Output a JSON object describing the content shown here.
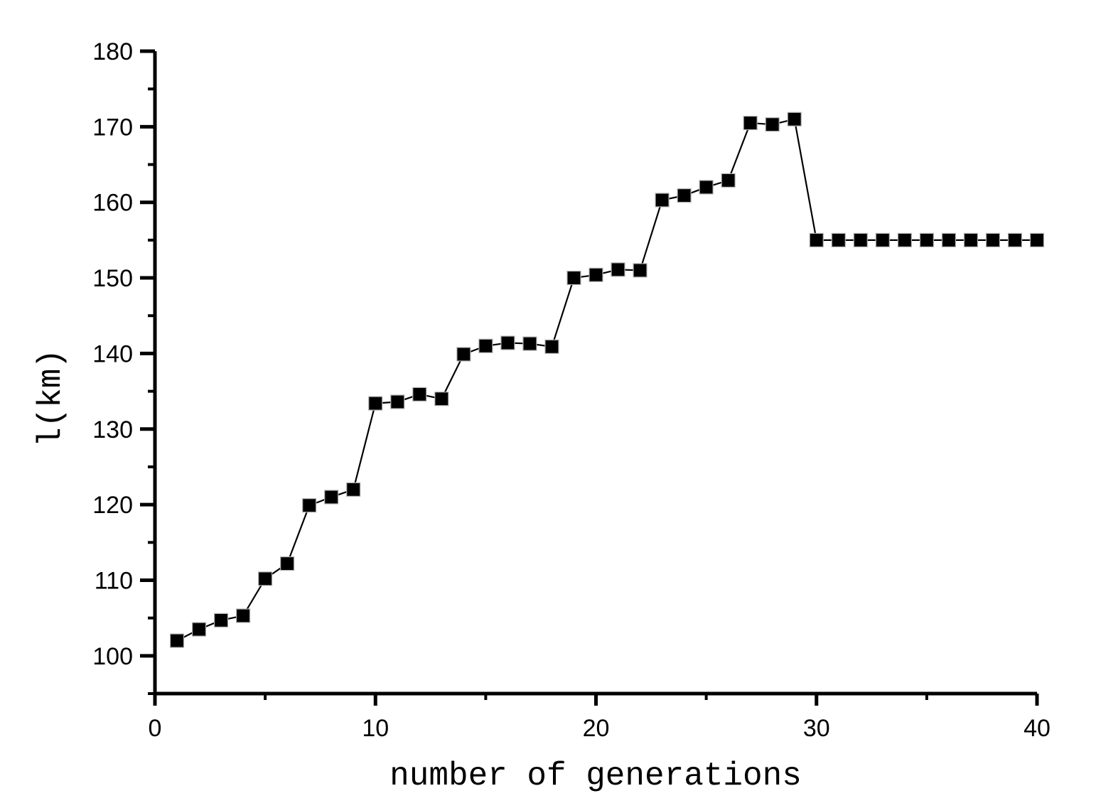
{
  "chart_data": {
    "type": "line",
    "subtype": "scatter-line",
    "marker": "filled-square",
    "title": "",
    "xlabel": "number of generations",
    "ylabel": "l(km)",
    "xlim": [
      0,
      40
    ],
    "ylim": [
      95,
      180
    ],
    "grid": false,
    "legend": "none",
    "x": [
      1,
      2,
      3,
      4,
      5,
      6,
      7,
      8,
      9,
      10,
      11,
      12,
      13,
      14,
      15,
      16,
      17,
      18,
      19,
      20,
      21,
      22,
      23,
      24,
      25,
      26,
      27,
      28,
      29,
      30,
      31,
      32,
      33,
      34,
      35,
      36,
      37,
      38,
      39,
      40
    ],
    "values": [
      102.0,
      103.5,
      104.7,
      105.3,
      110.2,
      112.2,
      119.9,
      121.0,
      122.0,
      133.4,
      133.6,
      134.6,
      134.0,
      139.9,
      141.0,
      141.4,
      141.3,
      140.9,
      150.0,
      150.4,
      151.1,
      151.0,
      160.3,
      160.9,
      162.0,
      162.9,
      170.5,
      170.3,
      171.0,
      155.0,
      155.0,
      155.0,
      155.0,
      155.0,
      155.0,
      155.0,
      155.0,
      155.0,
      155.0,
      155.0
    ],
    "series_name": "l",
    "x_major_ticks": [
      0,
      10,
      20,
      30,
      40
    ],
    "x_minor_ticks": [
      5,
      15,
      25,
      35
    ],
    "y_major_ticks": [
      100,
      110,
      120,
      130,
      140,
      150,
      160,
      170,
      180
    ],
    "y_minor_ticks": [
      95,
      105,
      115,
      125,
      135,
      145,
      155,
      165,
      175
    ],
    "colors": {
      "stroke": "#000000",
      "marker_fill": "#000000",
      "marker_halo": "#b3b3b3",
      "background": "#ffffff"
    }
  }
}
